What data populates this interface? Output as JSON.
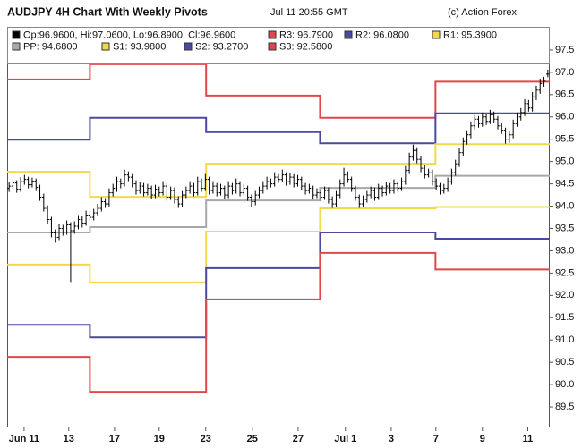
{
  "chart_data": {
    "type": "ohlc",
    "title": "AUDJPY 4H Chart With Weekly Pivots",
    "subtitle": "Jul 11 20:55 GMT",
    "credit": "(c) Action Forex",
    "ohlc_label": "Op:96.9600, Hi:97.0600, Lo:96.8900, Cl:96.9600",
    "ohlc_color": "#000000",
    "ohlc": [
      [
        94.4,
        94.55,
        94.32,
        94.45
      ],
      [
        94.45,
        94.6,
        94.38,
        94.52
      ],
      [
        94.52,
        94.58,
        94.3,
        94.38
      ],
      [
        94.38,
        94.65,
        94.32,
        94.55
      ],
      [
        94.55,
        94.7,
        94.48,
        94.6
      ],
      [
        94.6,
        94.66,
        94.4,
        94.48
      ],
      [
        94.48,
        94.64,
        94.42,
        94.56
      ],
      [
        94.56,
        94.62,
        94.34,
        94.42
      ],
      [
        94.42,
        94.48,
        94.12,
        94.2
      ],
      [
        94.2,
        94.28,
        93.88,
        93.95
      ],
      [
        93.95,
        94.02,
        93.6,
        93.7
      ],
      [
        93.7,
        93.76,
        93.3,
        93.4
      ],
      [
        93.4,
        93.48,
        93.18,
        93.3
      ],
      [
        93.3,
        93.6,
        93.24,
        93.5
      ],
      [
        93.5,
        93.58,
        93.34,
        93.42
      ],
      [
        93.42,
        93.68,
        93.36,
        93.58
      ],
      [
        93.58,
        93.64,
        92.3,
        93.45
      ],
      [
        93.45,
        93.66,
        93.38,
        93.55
      ],
      [
        93.55,
        93.8,
        93.48,
        93.7
      ],
      [
        93.7,
        93.78,
        93.52,
        93.62
      ],
      [
        93.62,
        93.9,
        93.56,
        93.8
      ],
      [
        93.8,
        93.88,
        93.66,
        93.75
      ],
      [
        93.75,
        93.94,
        93.68,
        93.85
      ],
      [
        93.85,
        94.05,
        93.78,
        93.95
      ],
      [
        93.95,
        94.2,
        93.88,
        94.1
      ],
      [
        94.1,
        94.18,
        93.96,
        94.05
      ],
      [
        94.05,
        94.4,
        93.98,
        94.3
      ],
      [
        94.3,
        94.5,
        94.22,
        94.4
      ],
      [
        94.4,
        94.66,
        94.32,
        94.55
      ],
      [
        94.55,
        94.62,
        94.4,
        94.5
      ],
      [
        94.5,
        94.82,
        94.44,
        94.7
      ],
      [
        94.7,
        94.78,
        94.56,
        94.65
      ],
      [
        94.65,
        94.72,
        94.42,
        94.5
      ],
      [
        94.5,
        94.58,
        94.26,
        94.35
      ],
      [
        94.35,
        94.54,
        94.28,
        94.45
      ],
      [
        94.45,
        94.52,
        94.22,
        94.3
      ],
      [
        94.3,
        94.5,
        94.24,
        94.4
      ],
      [
        94.4,
        94.46,
        94.16,
        94.25
      ],
      [
        94.25,
        94.48,
        94.18,
        94.38
      ],
      [
        94.38,
        94.44,
        94.22,
        94.3
      ],
      [
        94.3,
        94.56,
        94.24,
        94.45
      ],
      [
        94.45,
        94.52,
        94.12,
        94.2
      ],
      [
        94.2,
        94.44,
        94.14,
        94.35
      ],
      [
        94.35,
        94.42,
        94.06,
        94.15
      ],
      [
        94.15,
        94.22,
        93.96,
        94.05
      ],
      [
        94.05,
        94.34,
        93.98,
        94.25
      ],
      [
        94.25,
        94.44,
        94.18,
        94.35
      ],
      [
        94.35,
        94.56,
        94.28,
        94.45
      ],
      [
        94.45,
        94.52,
        94.22,
        94.3
      ],
      [
        94.3,
        94.66,
        94.24,
        94.55
      ],
      [
        94.55,
        94.62,
        94.32,
        94.4
      ],
      [
        94.4,
        94.72,
        94.34,
        94.6
      ],
      [
        94.6,
        94.66,
        94.26,
        94.35
      ],
      [
        94.35,
        94.56,
        94.28,
        94.45
      ],
      [
        94.45,
        94.52,
        94.22,
        94.3
      ],
      [
        94.3,
        94.5,
        94.24,
        94.4
      ],
      [
        94.4,
        94.46,
        94.16,
        94.25
      ],
      [
        94.25,
        94.56,
        94.18,
        94.45
      ],
      [
        94.45,
        94.52,
        94.26,
        94.35
      ],
      [
        94.35,
        94.62,
        94.28,
        94.5
      ],
      [
        94.5,
        94.56,
        94.22,
        94.3
      ],
      [
        94.3,
        94.5,
        94.24,
        94.4
      ],
      [
        94.4,
        94.46,
        94.12,
        94.2
      ],
      [
        94.2,
        94.26,
        93.98,
        94.1
      ],
      [
        94.1,
        94.34,
        94.02,
        94.25
      ],
      [
        94.25,
        94.44,
        94.18,
        94.35
      ],
      [
        94.35,
        94.56,
        94.28,
        94.45
      ],
      [
        94.45,
        94.66,
        94.38,
        94.55
      ],
      [
        94.55,
        94.62,
        94.42,
        94.5
      ],
      [
        94.5,
        94.76,
        94.44,
        94.65
      ],
      [
        94.65,
        94.72,
        94.52,
        94.6
      ],
      [
        94.6,
        94.82,
        94.54,
        94.7
      ],
      [
        94.7,
        94.76,
        94.46,
        94.55
      ],
      [
        94.55,
        94.74,
        94.48,
        94.65
      ],
      [
        94.65,
        94.72,
        94.42,
        94.5
      ],
      [
        94.5,
        94.7,
        94.44,
        94.6
      ],
      [
        94.6,
        94.66,
        94.36,
        94.45
      ],
      [
        94.45,
        94.52,
        94.26,
        94.35
      ],
      [
        94.35,
        94.5,
        94.28,
        94.4
      ],
      [
        94.4,
        94.46,
        94.16,
        94.25
      ],
      [
        94.25,
        94.4,
        94.18,
        94.3
      ],
      [
        94.3,
        94.36,
        94.12,
        94.2
      ],
      [
        94.2,
        94.44,
        94.14,
        94.35
      ],
      [
        94.35,
        94.42,
        94.06,
        94.15
      ],
      [
        94.15,
        94.22,
        93.96,
        94.05
      ],
      [
        94.05,
        94.34,
        93.98,
        94.25
      ],
      [
        94.25,
        94.6,
        94.18,
        94.5
      ],
      [
        94.5,
        94.86,
        94.44,
        94.7
      ],
      [
        94.7,
        94.78,
        94.52,
        94.6
      ],
      [
        94.6,
        94.66,
        94.32,
        94.4
      ],
      [
        94.4,
        94.46,
        94.12,
        94.2
      ],
      [
        94.2,
        94.26,
        93.96,
        94.05
      ],
      [
        94.05,
        94.24,
        93.98,
        94.15
      ],
      [
        94.15,
        94.34,
        94.08,
        94.25
      ],
      [
        94.25,
        94.44,
        94.18,
        94.35
      ],
      [
        94.35,
        94.42,
        94.12,
        94.2
      ],
      [
        94.2,
        94.5,
        94.14,
        94.4
      ],
      [
        94.4,
        94.46,
        94.22,
        94.3
      ],
      [
        94.3,
        94.54,
        94.24,
        94.45
      ],
      [
        94.45,
        94.52,
        94.28,
        94.35
      ],
      [
        94.35,
        94.6,
        94.28,
        94.5
      ],
      [
        94.5,
        94.56,
        94.32,
        94.4
      ],
      [
        94.4,
        94.64,
        94.34,
        94.55
      ],
      [
        94.55,
        94.9,
        94.48,
        94.8
      ],
      [
        94.8,
        95.2,
        94.72,
        95.1
      ],
      [
        95.1,
        95.38,
        95.02,
        95.25
      ],
      [
        95.25,
        95.32,
        94.96,
        95.05
      ],
      [
        95.05,
        95.12,
        94.76,
        94.85
      ],
      [
        94.85,
        94.92,
        94.62,
        94.7
      ],
      [
        94.7,
        94.84,
        94.64,
        94.75
      ],
      [
        94.75,
        94.82,
        94.46,
        94.55
      ],
      [
        94.55,
        94.62,
        94.36,
        94.45
      ],
      [
        94.45,
        94.52,
        94.26,
        94.35
      ],
      [
        94.35,
        94.5,
        94.28,
        94.4
      ],
      [
        94.4,
        94.64,
        94.32,
        94.55
      ],
      [
        94.55,
        94.84,
        94.48,
        94.75
      ],
      [
        94.75,
        95.04,
        94.68,
        94.95
      ],
      [
        94.95,
        95.3,
        94.88,
        95.2
      ],
      [
        95.2,
        95.54,
        95.12,
        95.45
      ],
      [
        95.45,
        95.7,
        95.38,
        95.6
      ],
      [
        95.6,
        95.9,
        95.52,
        95.8
      ],
      [
        95.8,
        96.04,
        95.72,
        95.95
      ],
      [
        95.95,
        96.02,
        95.76,
        95.85
      ],
      [
        95.85,
        96.1,
        95.78,
        96.0
      ],
      [
        96.0,
        96.06,
        95.82,
        95.9
      ],
      [
        95.9,
        96.16,
        95.84,
        96.05
      ],
      [
        96.05,
        96.12,
        95.86,
        95.95
      ],
      [
        95.95,
        96.02,
        95.72,
        95.8
      ],
      [
        95.8,
        95.86,
        95.62,
        95.7
      ],
      [
        95.7,
        95.76,
        95.4,
        95.5
      ],
      [
        95.5,
        95.68,
        95.42,
        95.6
      ],
      [
        95.6,
        95.94,
        95.52,
        95.85
      ],
      [
        95.85,
        96.1,
        95.78,
        96.0
      ],
      [
        96.0,
        96.2,
        95.92,
        96.1
      ],
      [
        96.1,
        96.4,
        96.02,
        96.3
      ],
      [
        96.3,
        96.38,
        96.12,
        96.2
      ],
      [
        96.2,
        96.56,
        96.12,
        96.45
      ],
      [
        96.45,
        96.7,
        96.38,
        96.6
      ],
      [
        96.6,
        96.86,
        96.52,
        96.75
      ],
      [
        96.75,
        96.9,
        96.68,
        96.8
      ],
      [
        96.96,
        97.06,
        96.89,
        96.96
      ]
    ],
    "x": [
      0,
      21.5,
      51.7,
      81.3,
      111.3
    ],
    "series": [
      {
        "name": "R3: 96.7900",
        "color": "#e0474c",
        "values": [
          96.84,
          97.18,
          96.48,
          95.98,
          96.79
        ]
      },
      {
        "name": "R2: 96.0800",
        "color": "#4a4a9e",
        "values": [
          95.49,
          95.98,
          95.66,
          95.41,
          96.08
        ]
      },
      {
        "name": "R1: 95.3900",
        "color": "#f2d94a",
        "values": [
          94.77,
          94.21,
          94.95,
          94.95,
          95.39
        ]
      },
      {
        "name": "PP: 94.6800",
        "color": "#a8a8a8",
        "values": [
          93.41,
          93.53,
          94.13,
          94.41,
          94.68
        ]
      },
      {
        "name": "S1: 93.9800",
        "color": "#f2d94a",
        "values": [
          92.69,
          92.29,
          93.43,
          93.95,
          93.98
        ]
      },
      {
        "name": "S2: 93.2700",
        "color": "#4a4a9e",
        "values": [
          91.34,
          91.06,
          92.61,
          93.41,
          93.27
        ]
      },
      {
        "name": "S3: 92.5800",
        "color": "#e0474c",
        "values": [
          90.62,
          89.84,
          91.91,
          92.95,
          92.58
        ]
      }
    ],
    "xlim": [
      0,
      141
    ],
    "xticks": [
      {
        "value": 4.4,
        "label": "Jun 11"
      },
      {
        "value": 16,
        "label": "13"
      },
      {
        "value": 27.9,
        "label": "17"
      },
      {
        "value": 39.5,
        "label": "19"
      },
      {
        "value": 51.6,
        "label": "23"
      },
      {
        "value": 63.7,
        "label": "25"
      },
      {
        "value": 75.6,
        "label": "27"
      },
      {
        "value": 87.9,
        "label": "Jul 1"
      },
      {
        "value": 99.8,
        "label": "3"
      },
      {
        "value": 111.4,
        "label": "7"
      },
      {
        "value": 123.5,
        "label": "9"
      },
      {
        "value": 135.3,
        "label": "11"
      }
    ],
    "ylim": [
      89.04,
      98.02
    ],
    "yticks": [
      89.5,
      {
        "value": 90,
        "label": "90.0"
      },
      90.5,
      {
        "value": 91,
        "label": "91.0"
      },
      91.5,
      {
        "value": 92,
        "label": "92.0"
      },
      92.5,
      {
        "value": 93,
        "label": "93.0"
      },
      93.5,
      {
        "value": 94,
        "label": "94.0"
      },
      94.5,
      {
        "value": 95,
        "label": "95.0"
      },
      95.5,
      {
        "value": 96,
        "label": "96.0"
      },
      96.5,
      {
        "value": 97,
        "label": "97.0"
      },
      97.5
    ],
    "grid": false
  }
}
